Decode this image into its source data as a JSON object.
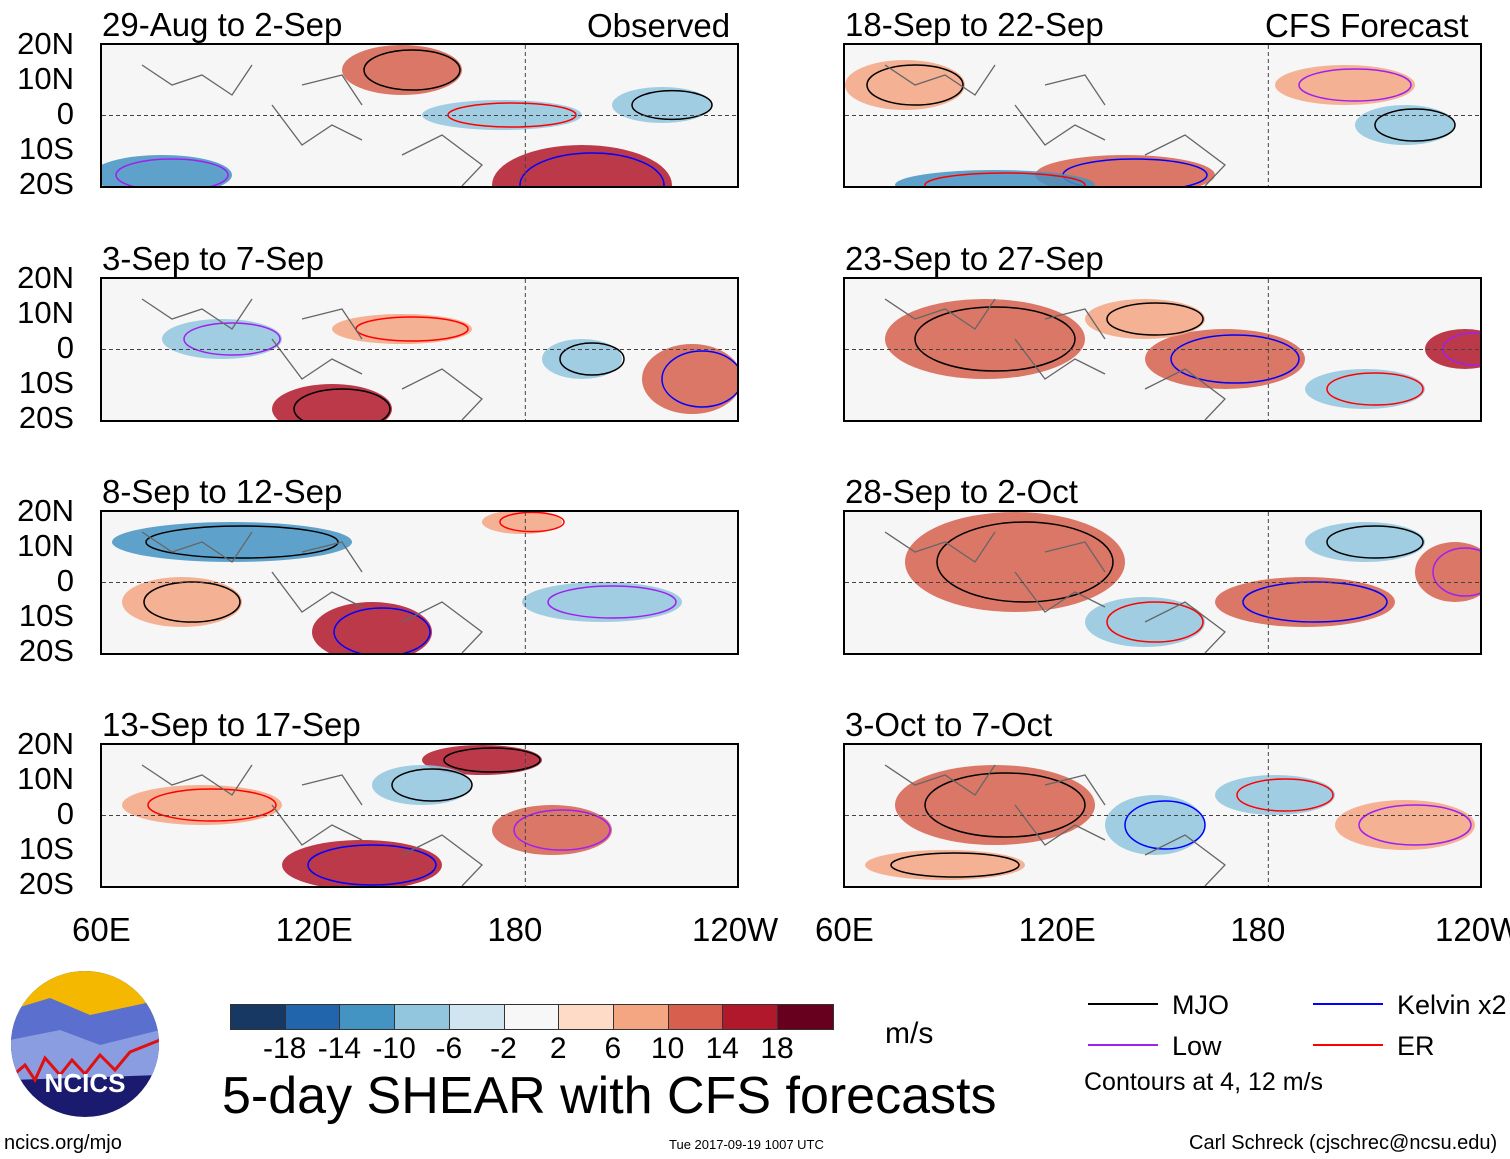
{
  "header": {
    "left_label": "Observed",
    "right_label": "CFS Forecast"
  },
  "panels_left": [
    "29-Aug to 2-Sep",
    "3-Sep to 7-Sep",
    "8-Sep to 12-Sep",
    "13-Sep to 17-Sep"
  ],
  "panels_right": [
    "18-Sep to 22-Sep",
    "23-Sep to 27-Sep",
    "28-Sep to 2-Oct",
    "3-Oct to 7-Oct"
  ],
  "lat_labels": [
    "20N",
    "10N",
    "0",
    "10S",
    "20S"
  ],
  "lon_labels": [
    "60E",
    "120E",
    "180",
    "120W"
  ],
  "colorbar": {
    "colors": [
      "#173863",
      "#2166ac",
      "#4393c3",
      "#92c5de",
      "#d1e5f0",
      "#f7f7f7",
      "#fddbc7",
      "#f4a582",
      "#d6604d",
      "#b2182b",
      "#67001f"
    ],
    "labels": [
      "-18",
      "-14",
      "-10",
      "-6",
      "-2",
      "2",
      "6",
      "10",
      "14",
      "18"
    ],
    "units": "m/s"
  },
  "title": "5-day SHEAR with CFS forecasts",
  "legend": {
    "items": [
      {
        "label": "MJO",
        "color": "#000000"
      },
      {
        "label": "Kelvin x2",
        "color": "#0000ff"
      },
      {
        "label": "Low",
        "color": "#a020f0"
      },
      {
        "label": "ER",
        "color": "#ff0000"
      }
    ],
    "note": "Contours at 4, 12 m/s"
  },
  "logo": {
    "text": "NCICS"
  },
  "footer": {
    "url": "ncics.org/mjo",
    "timestamp": "Tue 2017-09-19 1007 UTC",
    "author": "Carl Schreck (cjschrec@ncsu.edu)"
  }
}
